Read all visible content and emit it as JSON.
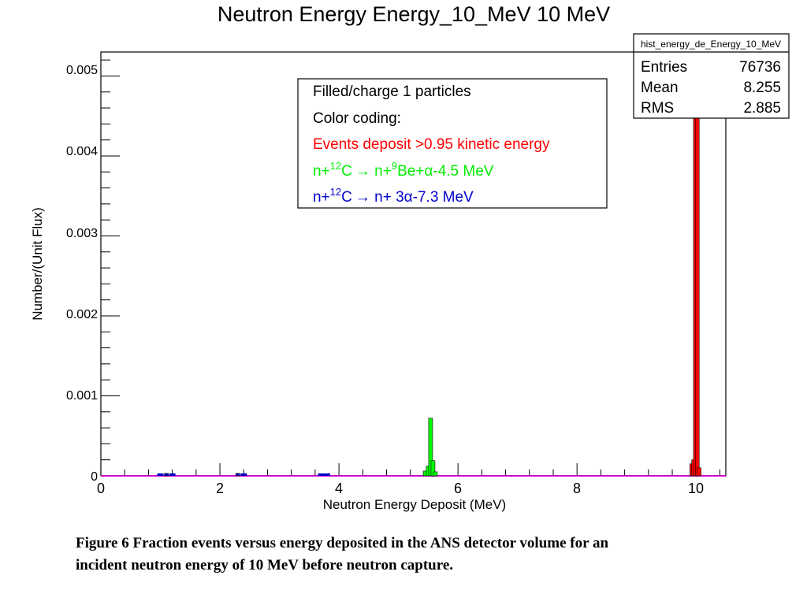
{
  "chart_data": {
    "type": "bar",
    "title": "Neutron Energy Energy_10_MeV 10 MeV",
    "xlabel": "Neutron Energy Deposit (MeV)",
    "ylabel": "Number/(Unit Flux)",
    "xlim": [
      0,
      10.5
    ],
    "ylim": [
      0,
      0.0053
    ],
    "x_ticks": [
      "0",
      "2",
      "4",
      "6",
      "8",
      "10"
    ],
    "y_ticks": [
      "0",
      "0.001",
      "0.002",
      "0.003",
      "0.004",
      "0.005"
    ],
    "stats_box": {
      "name": "hist_energy_de_Energy_10_MeV",
      "rows": [
        {
          "label": "Entries",
          "value": "76736"
        },
        {
          "label": "Mean",
          "value": "8.255"
        },
        {
          "label": "RMS",
          "value": "2.885"
        }
      ]
    },
    "legend": {
      "line1": "Filled/charge 1 particles",
      "line2": "Color coding:",
      "line3": "Events deposit >0.95 kinetic energy",
      "line4": {
        "pre": "n+",
        "sup1": "12",
        "mid1": "C",
        "arrow": "→",
        "mid2": " n+",
        "sup2": "9",
        "post": "Be+α-4.5 MeV"
      },
      "line5": {
        "pre": "n+",
        "sup1": "12",
        "mid1": "C",
        "arrow": "→",
        "post": " n+ 3α-7.3 MeV"
      }
    },
    "series": [
      {
        "color": "#ff0000",
        "x": [
          9.93,
          9.96,
          9.99,
          10.02,
          10.05
        ],
        "values": [
          0.00015,
          0.0002,
          0.0049,
          0.0048,
          0.0001
        ]
      },
      {
        "color": "#00ff00",
        "x": [
          5.45,
          5.5,
          5.54,
          5.58,
          5.62
        ],
        "values": [
          6e-05,
          0.00012,
          0.00072,
          0.00019,
          5e-05
        ]
      },
      {
        "color": "#0000cc",
        "x": [
          1.0,
          1.1,
          1.2,
          2.3,
          2.4,
          3.7,
          3.8
        ],
        "values": [
          2e-05,
          3e-05,
          2e-05,
          3e-05,
          2e-05,
          1e-05,
          1e-05
        ]
      }
    ],
    "baseline_color": "#cc00cc"
  },
  "caption": {
    "line1": "Figure 6 Fraction events versus energy deposited in the ANS detector volume for an",
    "line2": "incident neutron energy of 10 MeV before neutron capture."
  }
}
